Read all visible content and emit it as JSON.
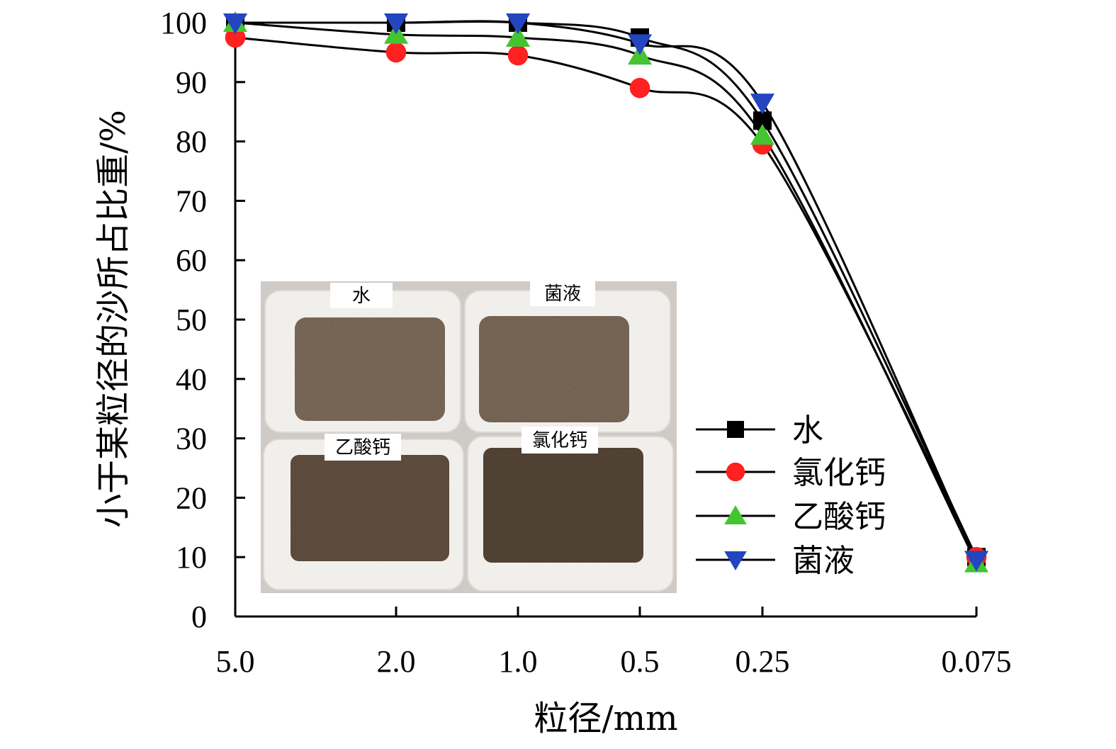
{
  "chart_data": {
    "type": "line",
    "title": "",
    "xlabel": "粒径/mm",
    "ylabel": "小于某粒径的沙所占比重/%",
    "x": [
      "5.0",
      "2.0",
      "1.0",
      "0.5",
      "0.25",
      "0.075"
    ],
    "y_ticks": [
      "0",
      "10",
      "20",
      "30",
      "40",
      "50",
      "60",
      "70",
      "80",
      "90",
      "100"
    ],
    "ylim": [
      0,
      100
    ],
    "grid": false,
    "legend_position": "bottom-right",
    "series": [
      {
        "name": "水",
        "marker": "square",
        "color": "#000000",
        "values": [
          100,
          100,
          100,
          97.5,
          83.5,
          10
        ]
      },
      {
        "name": "氯化钙",
        "marker": "circle",
        "color": "#ff2020",
        "values": [
          97.5,
          95,
          94.5,
          89,
          79.5,
          10
        ]
      },
      {
        "name": "乙酸钙",
        "marker": "triangle-up",
        "color": "#44c431",
        "values": [
          100,
          98,
          97.5,
          94.5,
          81,
          9
        ]
      },
      {
        "name": "菌液",
        "marker": "triangle-down",
        "color": "#2345bf",
        "values": [
          100,
          100,
          100,
          96.5,
          86.5,
          9.5
        ]
      }
    ],
    "inset_photo": {
      "labels": [
        "水",
        "菌液",
        "乙酸钙",
        "氯化钙"
      ]
    }
  }
}
